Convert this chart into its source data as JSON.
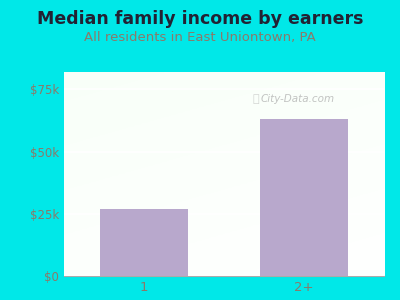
{
  "title": "Median family income by earners",
  "subtitle": "All residents in East Uniontown, PA",
  "categories": [
    "1",
    "2+"
  ],
  "values": [
    27000,
    63000
  ],
  "bar_color": "#b8a8cc",
  "outer_bg_color": "#00e8e8",
  "title_color": "#222233",
  "subtitle_color": "#8a7a6a",
  "tick_label_color": "#8a7a6a",
  "yticks": [
    0,
    25000,
    50000,
    75000
  ],
  "ytick_labels": [
    "$0",
    "$25k",
    "$50k",
    "$75k"
  ],
  "ylim": [
    0,
    82000
  ],
  "title_fontsize": 12.5,
  "subtitle_fontsize": 9.5,
  "watermark": "City-Data.com"
}
